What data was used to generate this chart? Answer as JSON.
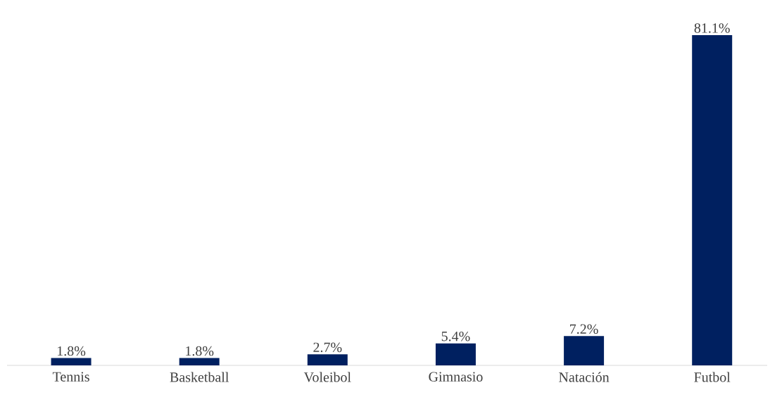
{
  "chart_data": {
    "type": "bar",
    "categories": [
      "Tennis",
      "Basketball",
      "Voleibol",
      "Gimnasio",
      "Natación",
      "Futbol"
    ],
    "values": [
      1.8,
      1.8,
      2.7,
      5.4,
      7.2,
      81.1
    ],
    "value_labels": [
      "1.8%",
      "1.8%",
      "2.7%",
      "5.4%",
      "7.2%",
      "81.1%"
    ],
    "color": "#002060"
  }
}
